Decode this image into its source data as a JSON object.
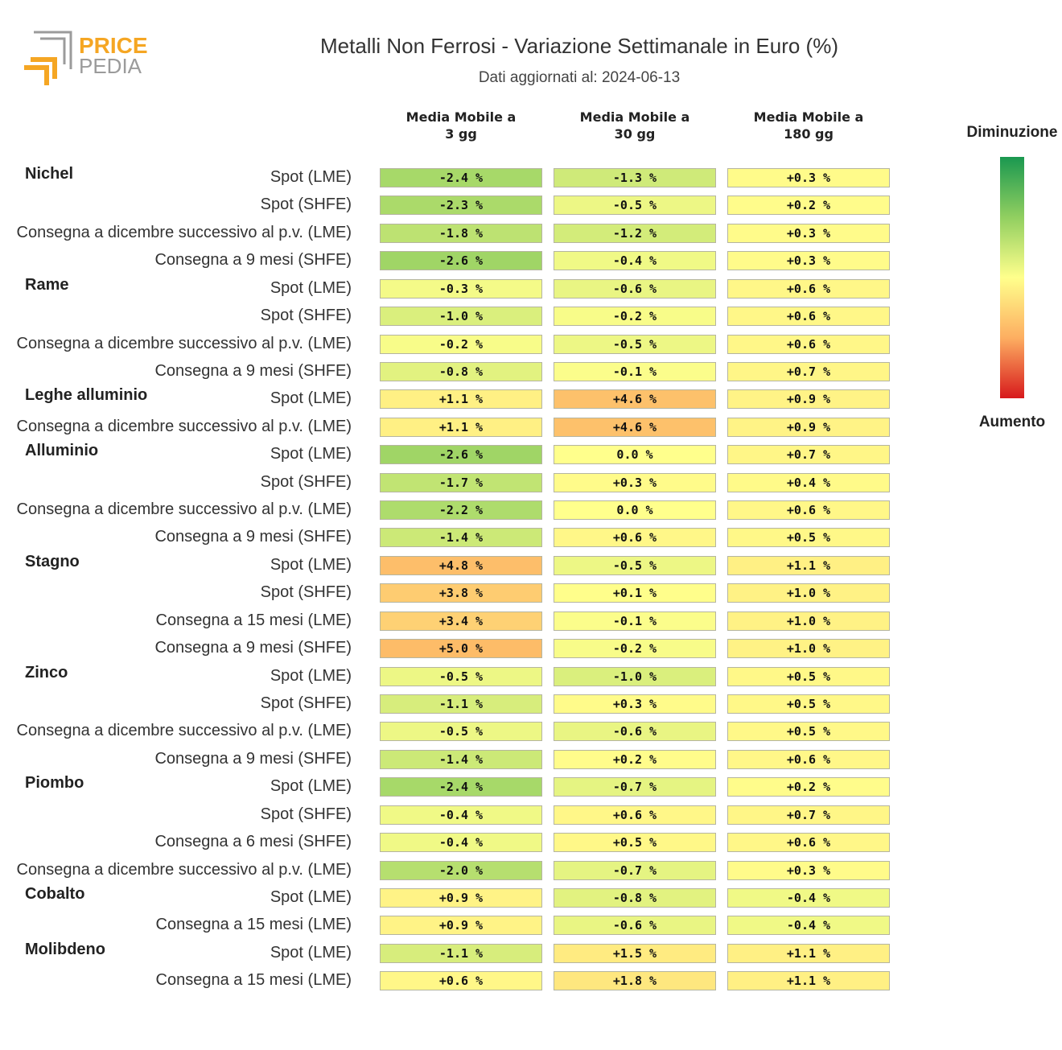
{
  "logo": {
    "line1": "PRICE",
    "line2": "PEDIA",
    "accent": "#f5a623",
    "gray": "#9b9b9b"
  },
  "title": "Metalli Non Ferrosi - Variazione Settimanale in Euro (%)",
  "subtitle": "Dati aggiornati al: 2024-06-13",
  "legend": {
    "top": "Diminuzione",
    "bottom": "Aumento"
  },
  "chart_data": {
    "type": "table",
    "columns": [
      {
        "line1": "Media Mobile a",
        "line2": "3 gg"
      },
      {
        "line1": "Media Mobile a",
        "line2": "30 gg"
      },
      {
        "line1": "Media Mobile a",
        "line2": "180 gg"
      }
    ],
    "unit": "%",
    "groups": [
      {
        "name": "Nichel",
        "rows": [
          {
            "label": "Spot (LME)",
            "values": [
              -2.4,
              -1.3,
              0.3
            ]
          },
          {
            "label": "Spot (SHFE)",
            "values": [
              -2.3,
              -0.5,
              0.2
            ]
          },
          {
            "label": "Consegna a dicembre successivo al p.v. (LME)",
            "values": [
              -1.8,
              -1.2,
              0.3
            ]
          },
          {
            "label": "Consegna a 9 mesi (SHFE)",
            "values": [
              -2.6,
              -0.4,
              0.3
            ]
          }
        ]
      },
      {
        "name": "Rame",
        "rows": [
          {
            "label": "Spot (LME)",
            "values": [
              -0.3,
              -0.6,
              0.6
            ]
          },
          {
            "label": "Spot (SHFE)",
            "values": [
              -1.0,
              -0.2,
              0.6
            ]
          },
          {
            "label": "Consegna a dicembre successivo al p.v. (LME)",
            "values": [
              -0.2,
              -0.5,
              0.6
            ]
          },
          {
            "label": "Consegna a 9 mesi (SHFE)",
            "values": [
              -0.8,
              -0.1,
              0.7
            ]
          }
        ]
      },
      {
        "name": "Leghe alluminio",
        "rows": [
          {
            "label": "Spot (LME)",
            "values": [
              1.1,
              4.6,
              0.9
            ]
          },
          {
            "label": "Consegna a dicembre successivo al p.v. (LME)",
            "values": [
              1.1,
              4.6,
              0.9
            ]
          }
        ]
      },
      {
        "name": "Alluminio",
        "rows": [
          {
            "label": "Spot (LME)",
            "values": [
              -2.6,
              0.0,
              0.7
            ]
          },
          {
            "label": "Spot (SHFE)",
            "values": [
              -1.7,
              0.3,
              0.4
            ]
          },
          {
            "label": "Consegna a dicembre successivo al p.v. (LME)",
            "values": [
              -2.2,
              0.0,
              0.6
            ]
          },
          {
            "label": "Consegna a 9 mesi (SHFE)",
            "values": [
              -1.4,
              0.6,
              0.5
            ]
          }
        ]
      },
      {
        "name": "Stagno",
        "rows": [
          {
            "label": "Spot (LME)",
            "values": [
              4.8,
              -0.5,
              1.1
            ]
          },
          {
            "label": "Spot (SHFE)",
            "values": [
              3.8,
              0.1,
              1.0
            ]
          },
          {
            "label": "Consegna a 15 mesi (LME)",
            "values": [
              3.4,
              -0.1,
              1.0
            ]
          },
          {
            "label": "Consegna a 9 mesi (SHFE)",
            "values": [
              5.0,
              -0.2,
              1.0
            ]
          }
        ]
      },
      {
        "name": "Zinco",
        "rows": [
          {
            "label": "Spot (LME)",
            "values": [
              -0.5,
              -1.0,
              0.5
            ]
          },
          {
            "label": "Spot (SHFE)",
            "values": [
              -1.1,
              0.3,
              0.5
            ]
          },
          {
            "label": "Consegna a dicembre successivo al p.v. (LME)",
            "values": [
              -0.5,
              -0.6,
              0.5
            ]
          },
          {
            "label": "Consegna a 9 mesi (SHFE)",
            "values": [
              -1.4,
              0.2,
              0.6
            ]
          }
        ]
      },
      {
        "name": "Piombo",
        "rows": [
          {
            "label": "Spot (LME)",
            "values": [
              -2.4,
              -0.7,
              0.2
            ]
          },
          {
            "label": "Spot (SHFE)",
            "values": [
              -0.4,
              0.6,
              0.7
            ]
          },
          {
            "label": "Consegna a 6 mesi (SHFE)",
            "values": [
              -0.4,
              0.5,
              0.6
            ]
          },
          {
            "label": "Consegna a dicembre successivo al p.v. (LME)",
            "values": [
              -2.0,
              -0.7,
              0.3
            ]
          }
        ]
      },
      {
        "name": "Cobalto",
        "rows": [
          {
            "label": "Spot (LME)",
            "values": [
              0.9,
              -0.8,
              -0.4
            ]
          },
          {
            "label": "Consegna a 15 mesi (LME)",
            "values": [
              0.9,
              -0.6,
              -0.4
            ]
          }
        ]
      },
      {
        "name": "Molibdeno",
        "rows": [
          {
            "label": "Spot (LME)",
            "values": [
              -1.1,
              1.5,
              1.1
            ]
          },
          {
            "label": "Consegna a 15 mesi (LME)",
            "values": [
              0.6,
              1.8,
              1.1
            ]
          }
        ]
      }
    ],
    "color_scale": {
      "decrease": "#1a9850",
      "neutral": "#ffff8c",
      "increase": "#d7191c"
    }
  }
}
